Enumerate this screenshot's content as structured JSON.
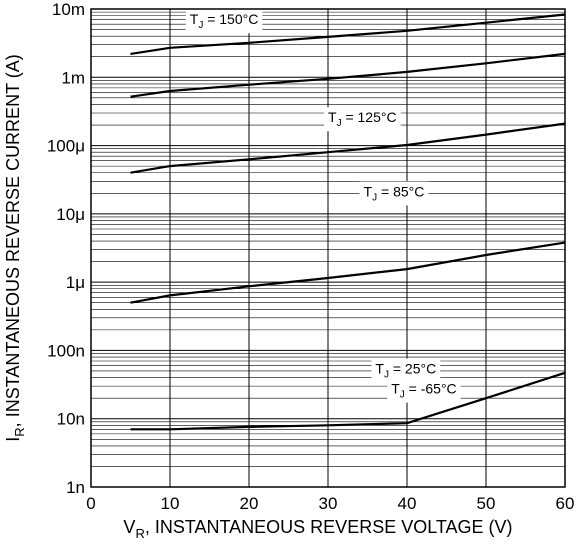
{
  "chart_data": {
    "type": "line",
    "title": "",
    "xlabel": {
      "main": "V",
      "sub": "R",
      "rest": ", INSTANTANEOUS REVERSE VOLTAGE (V)"
    },
    "ylabel": {
      "main": "I",
      "sub": "R",
      "rest": ", INSTANTANEOUS REVERSE CURRENT (A)"
    },
    "x_scale": "linear",
    "y_scale": "log",
    "xlim": [
      0,
      60
    ],
    "ylim": [
      1e-09,
      0.01
    ],
    "x_ticks": [
      0,
      10,
      20,
      30,
      40,
      50,
      60
    ],
    "x_tick_labels": [
      "0",
      "10",
      "20",
      "30",
      "40",
      "50",
      "60"
    ],
    "y_ticks": [
      1e-09,
      1e-08,
      1e-07,
      1e-06,
      1e-05,
      0.0001,
      0.001,
      0.01
    ],
    "y_tick_labels": [
      "1n",
      "10n",
      "100n",
      "1μ",
      "10μ",
      "100μ",
      "1m",
      "10m"
    ],
    "grid": true,
    "series": [
      {
        "label_main": "T",
        "label_sub": "J",
        "label_rest": " = 150°C",
        "x": [
          5,
          10,
          20,
          30,
          40,
          50,
          60
        ],
        "y": [
          0.0022,
          0.0027,
          0.0032,
          0.0039,
          0.0048,
          0.0063,
          0.0083
        ]
      },
      {
        "label_main": "T",
        "label_sub": "J",
        "label_rest": " = 125°C",
        "x": [
          5,
          10,
          20,
          30,
          40,
          50,
          60
        ],
        "y": [
          0.00052,
          0.00063,
          0.00078,
          0.00095,
          0.0012,
          0.0016,
          0.0022
        ]
      },
      {
        "label_main": "T",
        "label_sub": "J",
        "label_rest": " = 85°C",
        "x": [
          5,
          10,
          20,
          30,
          40,
          50,
          60
        ],
        "y": [
          4e-05,
          5e-05,
          6.3e-05,
          8e-05,
          0.000102,
          0.000145,
          0.00021
        ]
      },
      {
        "label_main": "T",
        "label_sub": "J",
        "label_rest": " = 25°C",
        "x": [
          5,
          10,
          20,
          30,
          40,
          50,
          60
        ],
        "y": [
          5e-07,
          6.4e-07,
          8.7e-07,
          1.15e-06,
          1.55e-06,
          2.5e-06,
          3.8e-06
        ]
      },
      {
        "label_main": "T",
        "label_sub": "J",
        "label_rest": " = -65°C",
        "x": [
          5,
          10,
          20,
          30,
          40,
          50,
          60
        ],
        "y": [
          7e-09,
          7e-09,
          7.6e-09,
          8e-09,
          8.6e-09,
          2e-08,
          4.7e-08
        ]
      }
    ]
  }
}
